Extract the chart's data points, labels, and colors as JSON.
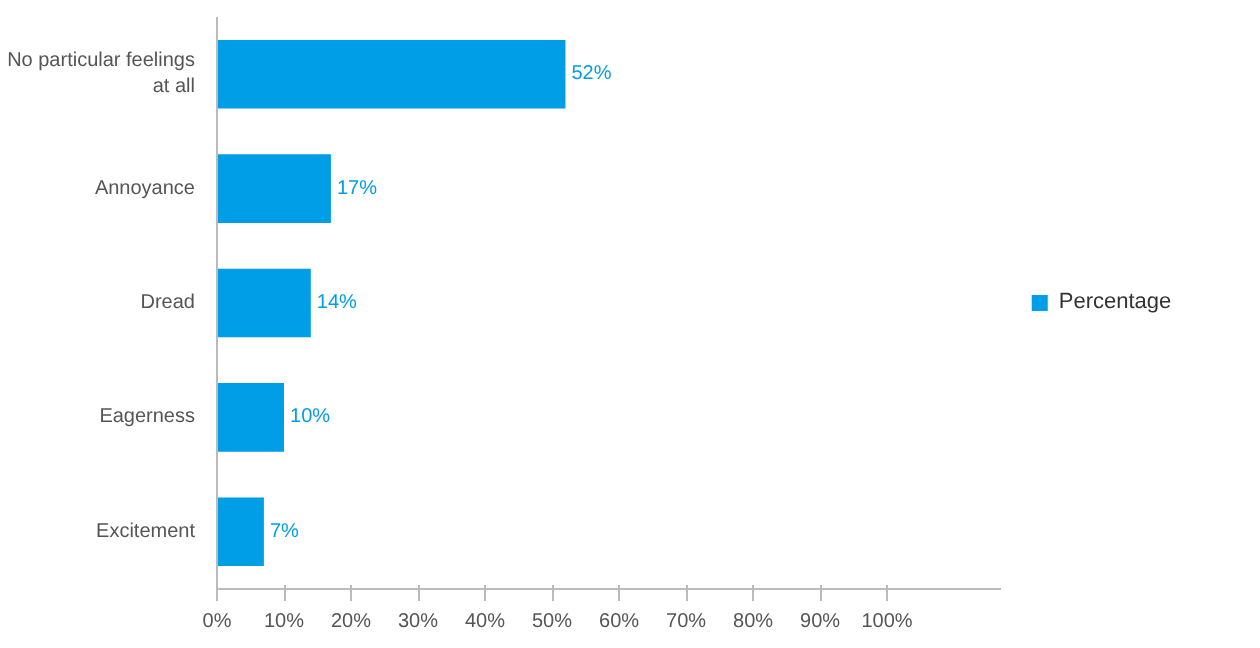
{
  "chart_data": {
    "type": "bar",
    "orientation": "horizontal",
    "categories": [
      "No particular feelings at all",
      "Annoyance",
      "Dread",
      "Eagerness",
      "Excitement"
    ],
    "series": [
      {
        "name": "Percentage",
        "color": "#009ee6",
        "values": [
          52,
          17,
          14,
          10,
          7
        ],
        "value_labels": [
          "52%",
          "17%",
          "14%",
          "10%",
          "7%"
        ]
      }
    ],
    "xlim": [
      0,
      117
    ],
    "xticks": [
      {
        "value": 0,
        "label": "0%"
      },
      {
        "value": 10,
        "label": "10%"
      },
      {
        "value": 20,
        "label": "20%"
      },
      {
        "value": 30,
        "label": "30%"
      },
      {
        "value": 40,
        "label": "40%"
      },
      {
        "value": 50,
        "label": "50%"
      },
      {
        "value": 60,
        "label": "60%"
      },
      {
        "value": 70,
        "label": "70%"
      },
      {
        "value": 80,
        "label": "80%"
      },
      {
        "value": 90,
        "label": "90%"
      },
      {
        "value": 100,
        "label": "100%"
      }
    ],
    "grid": false,
    "legend": "right"
  }
}
